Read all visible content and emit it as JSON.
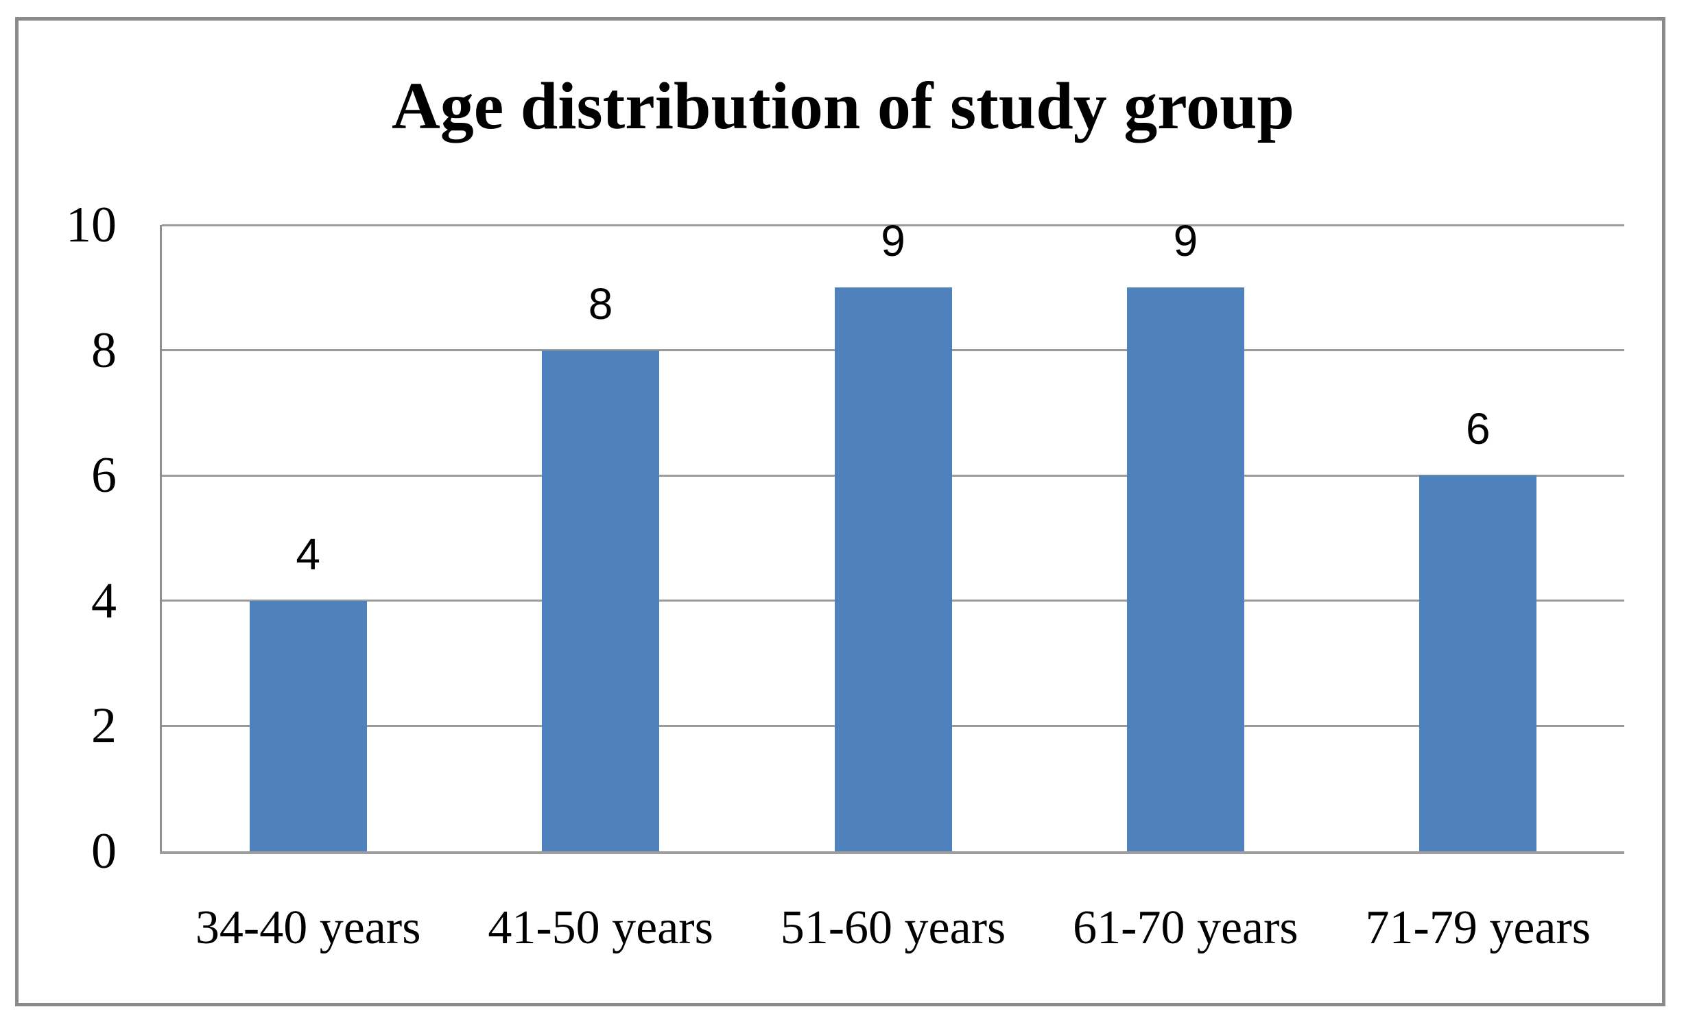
{
  "chart_data": {
    "type": "bar",
    "title": "Age distribution of study group",
    "categories": [
      "34-40 years",
      "41-50 years",
      "51-60 years",
      "61-70 years",
      "71-79 years"
    ],
    "values": [
      4,
      8,
      9,
      9,
      6
    ],
    "data_labels": [
      "4",
      "8",
      "9",
      "9",
      "6"
    ],
    "xlabel": "",
    "ylabel": "",
    "ylim": [
      0,
      10
    ],
    "yticks": [
      0,
      2,
      4,
      6,
      8,
      10
    ],
    "grid": true,
    "legend": false,
    "colors": {
      "bar": "#4F81BD",
      "gridline": "#9b9b9b",
      "axis": "#8f8f8f",
      "frame_border": "#8a8a8a",
      "text": "#000000",
      "background": "#ffffff"
    }
  }
}
